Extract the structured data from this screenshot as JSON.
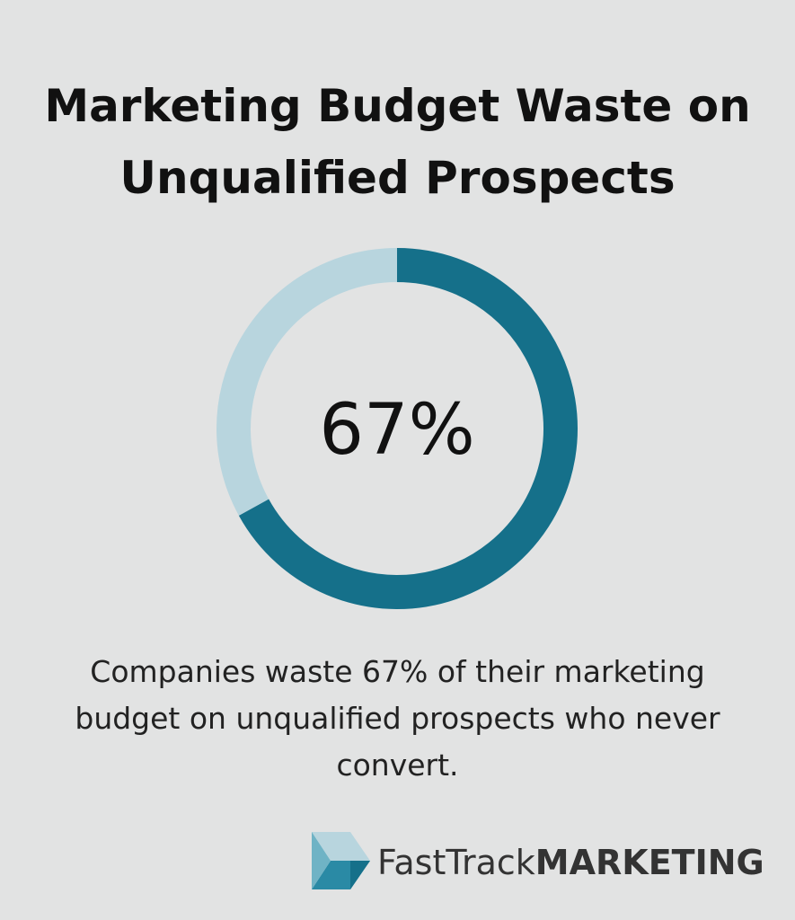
{
  "chart_data": {
    "type": "donut",
    "title": "Marketing Budget Waste on Unqualified Prospects",
    "values": [
      67,
      33
    ],
    "value_labels": [
      "67%",
      null
    ],
    "colors": [
      "#15708a",
      "#b8d5de"
    ],
    "caption": "Companies waste 67% of their marketing budget on unqualified prospects who never convert.",
    "brand": {
      "name": "FastTrack",
      "emphasis": "MARKETING"
    }
  }
}
